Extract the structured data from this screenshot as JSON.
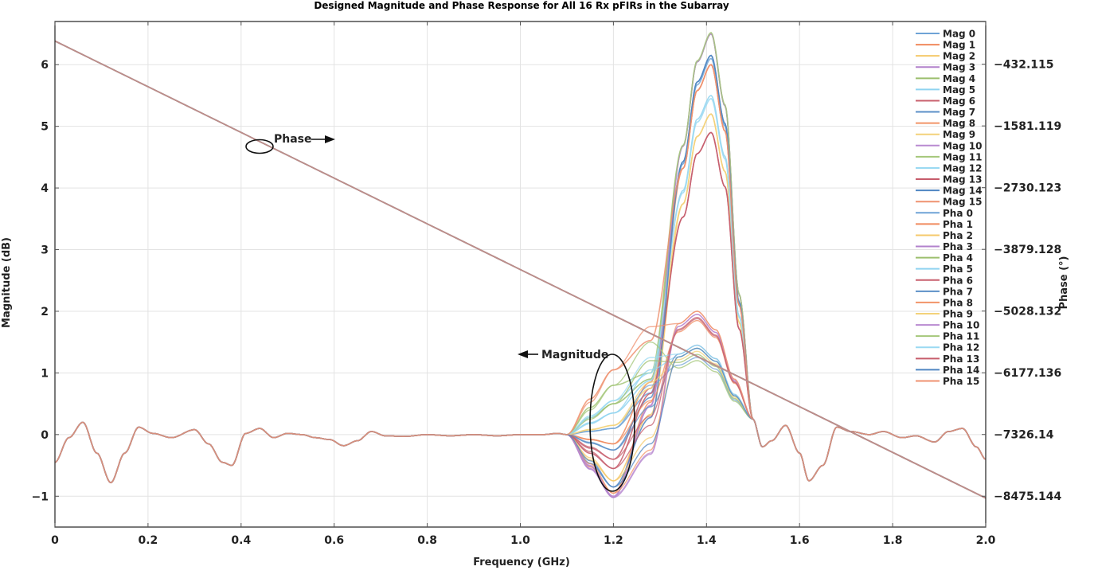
{
  "chart_data": {
    "type": "line",
    "title": "Designed Magnitude and Phase Response for All 16 Rx pFIRs in the Subarray",
    "xlabel": "Frequency (GHz)",
    "ylabel_left": "Magnitude (dB)",
    "ylabel_right": "Phase (°)",
    "xlim": [
      0,
      2.0
    ],
    "ylim_left": [
      -1.5,
      6.7
    ],
    "ylim_right": [
      -9049.6,
      363
    ],
    "x_ticks": [
      "0",
      "0.2",
      "0.4",
      "0.6",
      "0.8",
      "1.0",
      "1.2",
      "1.4",
      "1.6",
      "1.8",
      "2.0"
    ],
    "y_ticks_left": [
      "−1",
      "0",
      "1",
      "2",
      "3",
      "4",
      "5",
      "6"
    ],
    "y_ticks_right": [
      "−432.115",
      "−1581.119",
      "−2730.123",
      "−3879.128",
      "−5028.132",
      "−6177.136",
      "−7326.14",
      "−8475.144"
    ],
    "grid": true,
    "legend_position": "top-right",
    "colors": [
      "#6fa3d6",
      "#f08a5d",
      "#f5c96b",
      "#b282cc",
      "#9cbf6e",
      "#8fd3f0",
      "#c8606e",
      "#5b8fc7",
      "#f29468",
      "#f3d27a",
      "#b98ad1",
      "#a4c77a",
      "#9ad9f2",
      "#c65c6b",
      "#4f86c2",
      "#ef9270"
    ],
    "common_magnitude": {
      "x": [
        0,
        0.03,
        0.06,
        0.09,
        0.12,
        0.15,
        0.18,
        0.21,
        0.25,
        0.3,
        0.33,
        0.36,
        0.38,
        0.41,
        0.44,
        0.47,
        0.5,
        0.53,
        0.56,
        0.59,
        0.62,
        0.65,
        0.68,
        0.71,
        0.75,
        0.8,
        0.85,
        0.9,
        0.95,
        1.0,
        1.05,
        1.08,
        1.1
      ],
      "y": [
        -0.45,
        -0.05,
        0.2,
        -0.3,
        -0.78,
        -0.3,
        0.12,
        0.02,
        -0.05,
        0.08,
        -0.15,
        -0.45,
        -0.5,
        0.02,
        0.1,
        -0.05,
        0.02,
        0.0,
        -0.05,
        -0.08,
        -0.18,
        -0.1,
        0.05,
        -0.02,
        -0.03,
        0.0,
        -0.02,
        0.0,
        -0.02,
        0.0,
        0.0,
        0.02,
        0.0
      ],
      "tail_x": [
        1.52,
        1.54,
        1.57,
        1.6,
        1.62,
        1.65,
        1.68,
        1.71,
        1.75,
        1.78,
        1.82,
        1.85,
        1.89,
        1.92,
        1.95,
        1.98,
        2.0
      ],
      "tail_y": [
        -0.2,
        -0.1,
        0.15,
        -0.3,
        -0.75,
        -0.5,
        0.12,
        0.05,
        0.0,
        0.05,
        -0.05,
        -0.02,
        -0.12,
        0.05,
        0.1,
        -0.2,
        -0.4
      ]
    },
    "series": [
      {
        "name": "Mag 0",
        "dip": 0.1,
        "hump": 1.25,
        "peak": 6.1
      },
      {
        "name": "Mag 1",
        "dip": -0.15,
        "hump": 1.85,
        "peak": 6.0
      },
      {
        "name": "Mag 2",
        "dip": -0.75,
        "hump": 1.4,
        "peak": 5.2
      },
      {
        "name": "Mag 3",
        "dip": -1.02,
        "hump": 1.95,
        "peak": 6.5
      },
      {
        "name": "Mag 4",
        "dip": 0.5,
        "hump": 1.3,
        "peak": 6.5
      },
      {
        "name": "Mag 5",
        "dip": 0.35,
        "hump": 1.4,
        "peak": 5.5
      },
      {
        "name": "Mag 6",
        "dip": -0.4,
        "hump": 1.9,
        "peak": 4.9
      },
      {
        "name": "Mag 7",
        "dip": -0.25,
        "hump": 1.45,
        "peak": 6.15
      },
      {
        "name": "Mag 8",
        "dip": -0.95,
        "hump": 2.0,
        "peak": 6.0
      },
      {
        "name": "Mag 9",
        "dip": 0.15,
        "hump": 1.35,
        "peak": 5.2
      },
      {
        "name": "Mag 10",
        "dip": -1.0,
        "hump": 1.95,
        "peak": 6.5
      },
      {
        "name": "Mag 11",
        "dip": 0.8,
        "hump": 1.2,
        "peak": 6.52
      },
      {
        "name": "Mag 12",
        "dip": 0.55,
        "hump": 1.45,
        "peak": 5.45
      },
      {
        "name": "Mag 13",
        "dip": -0.55,
        "hump": 1.88,
        "peak": 4.9
      },
      {
        "name": "Mag 14",
        "dip": -0.85,
        "hump": 1.4,
        "peak": 6.15
      },
      {
        "name": "Mag 15",
        "dip": 1.05,
        "hump": 2.0,
        "peak": 6.0
      },
      {
        "name": "Pha 0",
        "phase_start": 0,
        "phase_end": -8510
      },
      {
        "name": "Pha 1",
        "phase_start": 0,
        "phase_end": -8510
      },
      {
        "name": "Pha 2",
        "phase_start": 0,
        "phase_end": -8510
      },
      {
        "name": "Pha 3",
        "phase_start": 0,
        "phase_end": -8510
      },
      {
        "name": "Pha 4",
        "phase_start": 0,
        "phase_end": -8510
      },
      {
        "name": "Pha 5",
        "phase_start": 0,
        "phase_end": -8510
      },
      {
        "name": "Pha 6",
        "phase_start": 0,
        "phase_end": -8510
      },
      {
        "name": "Pha 7",
        "phase_start": 0,
        "phase_end": -8510
      },
      {
        "name": "Pha 8",
        "phase_start": 0,
        "phase_end": -8510
      },
      {
        "name": "Pha 9",
        "phase_start": 0,
        "phase_end": -8510
      },
      {
        "name": "Pha 10",
        "phase_start": 0,
        "phase_end": -8510
      },
      {
        "name": "Pha 11",
        "phase_start": 0,
        "phase_end": -8510
      },
      {
        "name": "Pha 12",
        "phase_start": 0,
        "phase_end": -8510
      },
      {
        "name": "Pha 13",
        "phase_start": 0,
        "phase_end": -8510
      },
      {
        "name": "Pha 14",
        "phase_start": 0,
        "phase_end": -8510
      },
      {
        "name": "Pha 15",
        "phase_start": 0,
        "phase_end": -8510
      }
    ],
    "annotations": [
      {
        "text": "Phase",
        "x": 0.47,
        "y_mag": 4.8
      },
      {
        "text": "Magnitude",
        "x": 1.05,
        "y_mag": 1.3
      }
    ]
  }
}
